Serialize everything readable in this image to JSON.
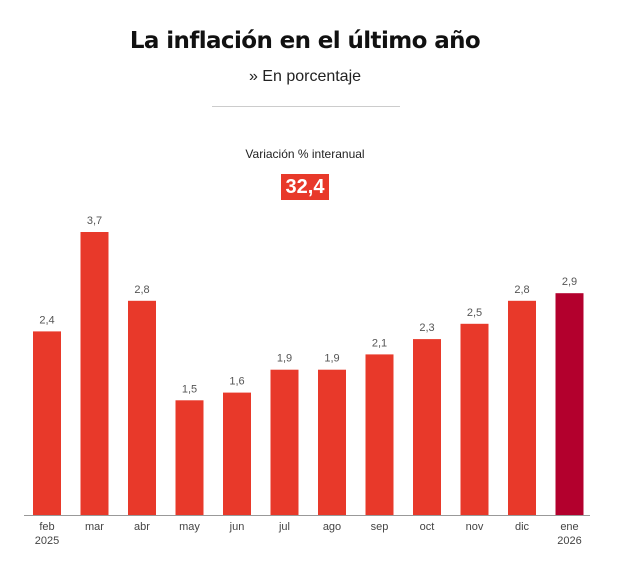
{
  "header": {
    "title": "La inflación en el último año",
    "subtitle": "» En porcentaje"
  },
  "highlight": {
    "label": "Variación % interanual",
    "value": "32,4"
  },
  "colors": {
    "bar": "#e8392a",
    "bar_highlight": "#b3002d",
    "axis": "#999999"
  },
  "chart_data": {
    "type": "bar",
    "title": "La inflación en el último año",
    "subtitle": "En porcentaje",
    "xlabel": "",
    "ylabel": "",
    "ylim": [
      0,
      3.7
    ],
    "grid": false,
    "categories": [
      [
        "feb",
        "2025"
      ],
      [
        "mar"
      ],
      [
        "abr"
      ],
      [
        "may"
      ],
      [
        "jun"
      ],
      [
        "jul"
      ],
      [
        "ago"
      ],
      [
        "sep"
      ],
      [
        "oct"
      ],
      [
        "nov"
      ],
      [
        "dic"
      ],
      [
        "ene",
        "2026"
      ]
    ],
    "values": [
      2.4,
      3.7,
      2.8,
      1.5,
      1.6,
      1.9,
      1.9,
      2.1,
      2.3,
      2.5,
      2.8,
      2.9
    ],
    "value_labels": [
      "2,4",
      "3,7",
      "2,8",
      "1,5",
      "1,6",
      "1,9",
      "1,9",
      "2,1",
      "2,3",
      "2,5",
      "2,8",
      "2,9"
    ],
    "highlight_index": 11
  }
}
